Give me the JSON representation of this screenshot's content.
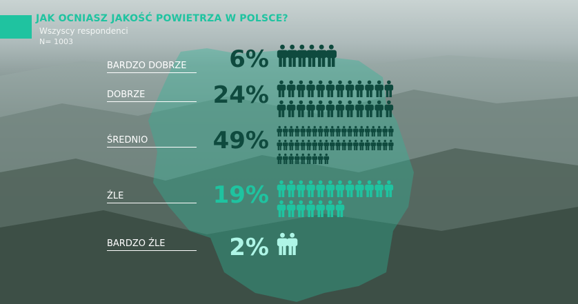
{
  "header": {
    "title": "JAK OCNIASZ JAKOŚĆ POWIETRZA W POLSCE?",
    "subtitle": "Wszyscy respondenci",
    "sample": "N= 1003"
  },
  "chart_data": {
    "type": "bar",
    "title": "JAK OCNIASZ JAKOŚĆ POWIETRZA W POLSCE?",
    "categories": [
      "BARDZO DOBRZE",
      "DOBRZE",
      "ŚREDNIO",
      "ŹLE",
      "BARDZO ŹLE"
    ],
    "values": [
      6,
      24,
      49,
      19,
      2
    ],
    "value_labels": [
      "6%",
      "24%",
      "49%",
      "19%",
      "2%"
    ],
    "unit": "%",
    "colors": [
      "#0f4a3e",
      "#0f4a3e",
      "#0f4a3e",
      "#1fc3a0",
      "#aef5e6"
    ]
  }
}
